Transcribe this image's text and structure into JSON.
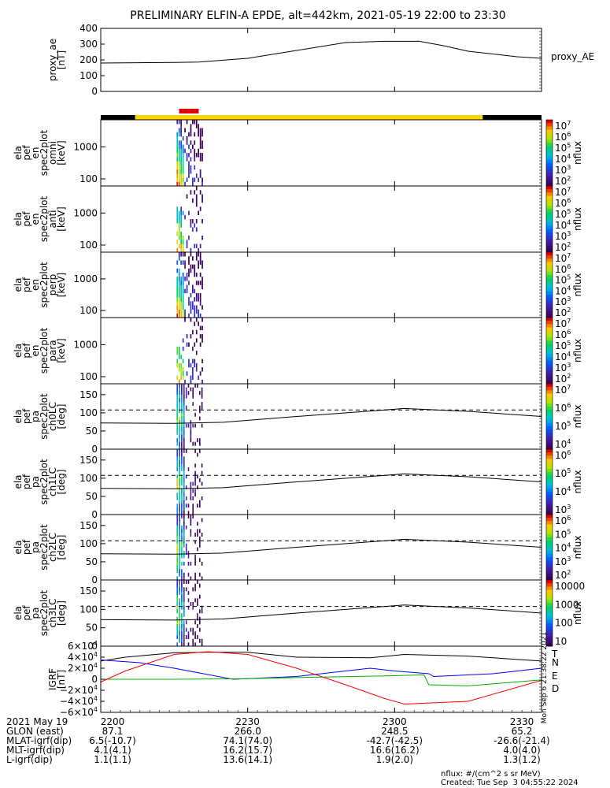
{
  "title": "PRELIMINARY ELFIN-A EPDE, alt=442km, 2021-05-19 22:00 to 23:30",
  "colors": {
    "sci_zone": "#ffd700",
    "sci_off": "#000000",
    "burst_marker": "#e00000",
    "N": "#0000ff",
    "E": "#00b000",
    "D": "#ff0000",
    "T": "#000000"
  },
  "time_axis": {
    "start": "2021-05-19 22:00",
    "end": "2021-05-19 23:30",
    "tick_labels": [
      "2200",
      "2230",
      "2300",
      "2330"
    ],
    "tick_minutes": [
      0,
      30,
      60,
      90
    ]
  },
  "panels": [
    {
      "id": "proxy_ae",
      "ylabel": [
        "proxy_ae",
        "[nT]"
      ],
      "right_label": "proxy_AE"
    },
    {
      "id": "omni",
      "ylabel": [
        "ela",
        "pef",
        "en",
        "spec2plot",
        "omni",
        "[keV]"
      ],
      "ct_label": "nflux"
    },
    {
      "id": "anti",
      "ylabel": [
        "ela",
        "pef",
        "en",
        "spec2plot",
        "anti",
        "[keV]"
      ],
      "ct_label": "nflux"
    },
    {
      "id": "perp",
      "ylabel": [
        "ela",
        "pef",
        "en",
        "spec2plot",
        "perp",
        "[keV]"
      ],
      "ct_label": "nflux"
    },
    {
      "id": "para",
      "ylabel": [
        "ela",
        "pef",
        "en",
        "spec2plot",
        "para",
        "[keV]"
      ],
      "ct_label": "nflux"
    },
    {
      "id": "ch0LC",
      "ylabel": [
        "ela",
        "pef",
        "pa",
        "spec2plot",
        "ch0LC",
        "[deg]"
      ],
      "ct_label": "nflux"
    },
    {
      "id": "ch1LC",
      "ylabel": [
        "ela",
        "pef",
        "pa",
        "spec2plot",
        "ch1LC",
        "[deg]"
      ],
      "ct_label": "nflux"
    },
    {
      "id": "ch2LC",
      "ylabel": [
        "ela",
        "pef",
        "pa",
        "spec2plot",
        "ch2LC",
        "[deg]"
      ],
      "ct_label": "nflux"
    },
    {
      "id": "ch3LC",
      "ylabel": [
        "ela",
        "pef",
        "pa",
        "spec2plot",
        "ch3LC",
        "[deg]"
      ],
      "ct_label": "nflux"
    },
    {
      "id": "igrf",
      "ylabel": [
        "IGRF",
        "[nT]"
      ],
      "legend": [
        "T",
        "N",
        "E",
        "D"
      ]
    }
  ],
  "chart_data": {
    "type": "line",
    "proxy_ae": {
      "ylim": [
        0,
        400
      ],
      "yticks": [
        "400",
        "300",
        "200",
        "100",
        "0"
      ],
      "x_minutes": [
        0,
        15,
        20,
        30,
        40,
        50,
        58,
        65,
        70,
        75,
        85,
        90
      ],
      "values": [
        180,
        184,
        186,
        210,
        260,
        310,
        318,
        318,
        290,
        255,
        220,
        210
      ]
    },
    "energy_panels": {
      "ylim_keV": [
        60,
        7000
      ],
      "yticks": [
        "1000",
        "100"
      ],
      "ytick_values": [
        1000,
        100
      ]
    },
    "pa_panels": {
      "ylim_deg": [
        0,
        180
      ],
      "yticks": [
        "150",
        "100",
        "50",
        "0"
      ],
      "ytick_values": [
        150,
        100,
        50,
        0
      ],
      "loss_cone_solid_deg": {
        "x_minutes": [
          0,
          15,
          25,
          40,
          55,
          62,
          75,
          90
        ],
        "values": [
          72,
          71,
          74,
          90,
          105,
          112,
          104,
          90
        ]
      },
      "antiloss_cone_dashed_deg": 108
    },
    "colorbars": [
      {
        "panel": "omni",
        "ticks": [
          "10^7",
          "10^6",
          "10^5",
          "10^4",
          "10^3",
          "10^2"
        ]
      },
      {
        "panel": "anti",
        "ticks": [
          "10^7",
          "10^6",
          "10^5",
          "10^4",
          "10^3",
          "10^2"
        ]
      },
      {
        "panel": "perp",
        "ticks": [
          "10^7",
          "10^6",
          "10^5",
          "10^4",
          "10^3",
          "10^2"
        ]
      },
      {
        "panel": "para",
        "ticks": [
          "10^7",
          "10^6",
          "10^5",
          "10^4",
          "10^3",
          "10^2"
        ]
      },
      {
        "panel": "ch0LC",
        "ticks": [
          "10^7",
          "10^6",
          "10^5",
          "10^4"
        ]
      },
      {
        "panel": "ch1LC",
        "ticks": [
          "10^6",
          "10^5",
          "10^4",
          "10^3"
        ]
      },
      {
        "panel": "ch2LC",
        "ticks": [
          "10^6",
          "10^5",
          "10^4",
          "10^3",
          "10^2"
        ]
      },
      {
        "panel": "ch3LC",
        "ticks": [
          "10000",
          "1000",
          "100",
          "10"
        ]
      }
    ],
    "igrf": {
      "ylim": [
        -60000,
        60000
      ],
      "yticks": [
        "6×10^4",
        "4×10^4",
        "2×10^4",
        "0",
        "−2×10^4",
        "−4×10^4",
        "−6×10^4"
      ],
      "ytick_values": [
        60000,
        40000,
        20000,
        0,
        -20000,
        -40000,
        -60000
      ],
      "series": [
        {
          "name": "T",
          "x_minutes": [
            0,
            5,
            15,
            22,
            30,
            40,
            55,
            62,
            75,
            90
          ],
          "values": [
            33000,
            40000,
            48000,
            49000,
            49000,
            40000,
            39000,
            45000,
            42000,
            33000
          ]
        },
        {
          "name": "N",
          "x_minutes": [
            0,
            8,
            15,
            27,
            40,
            55,
            60,
            67,
            68,
            80,
            90
          ],
          "values": [
            35000,
            30000,
            20000,
            0,
            5000,
            20000,
            15000,
            10000,
            5000,
            10000,
            20000
          ]
        },
        {
          "name": "E",
          "x_minutes": [
            0,
            15,
            30,
            45,
            58,
            66,
            67,
            75,
            90
          ],
          "values": [
            0,
            0,
            1000,
            4000,
            6000,
            8000,
            -10000,
            -12000,
            -1000
          ]
        },
        {
          "name": "D",
          "x_minutes": [
            0,
            5,
            15,
            22,
            30,
            40,
            50,
            58,
            62,
            75,
            90
          ],
          "values": [
            -5000,
            15000,
            45000,
            50000,
            45000,
            20000,
            -10000,
            -35000,
            -45000,
            -40000,
            -2000
          ]
        }
      ]
    },
    "sci_zone_minutes": [
      7,
      78
    ],
    "burst_minutes": [
      16,
      20
    ],
    "data_minutes": [
      15.5,
      21
    ]
  },
  "footer": {
    "rows": [
      {
        "label": "2021 May 19",
        "values": [
          "2200",
          "2230",
          "2300",
          "2330"
        ]
      },
      {
        "label": "GLON (east)",
        "values": [
          "87.1",
          "266.0",
          "248.5",
          "65.2"
        ]
      },
      {
        "label": "MLAT-igrf(dip)",
        "values": [
          "6.5(-10.7)",
          "74.1(74.0)",
          "-42.7(-42.5)",
          "-26.6(-21.4)"
        ]
      },
      {
        "label": "MLT-igrf(dip)",
        "values": [
          "4.1(4.1)",
          "16.2(15.7)",
          "16.6(16.2)",
          "4.0(4.0)"
        ]
      },
      {
        "label": "L-igrf(dip)",
        "values": [
          "1.1(1.1)",
          "13.6(14.1)",
          "1.9(2.0)",
          "1.3(1.2)"
        ]
      }
    ],
    "units_note": "nflux: #/(cm^2 s sr MeV)",
    "created": "Created: Tue Sep  3 04:55:22 2024",
    "side_stamp": "Mon Sep  6 21:38:22 2021"
  }
}
